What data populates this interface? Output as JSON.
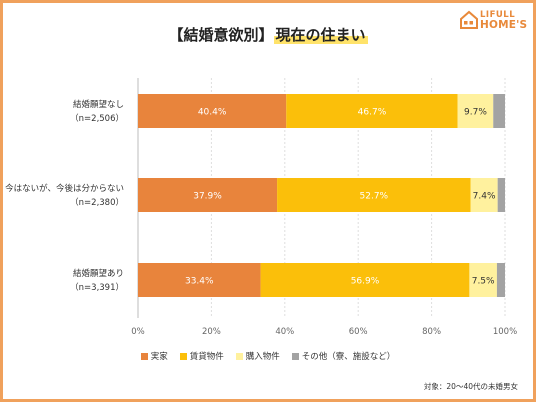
{
  "brand": {
    "name_top": "LIFULL",
    "name_bottom": "HOME'S",
    "color": "#e8893a"
  },
  "title": {
    "prefix": "【結婚意欲別】",
    "highlight": "現在の住まい",
    "highlight_color": "#ffe36a"
  },
  "chart_data": {
    "type": "bar",
    "orientation": "horizontal",
    "stacked": true,
    "categories": [
      {
        "label": "結婚願望なし",
        "n": "（n=2,506）"
      },
      {
        "label": "今はないが、今後は分からない",
        "n": "（n=2,380）"
      },
      {
        "label": "結婚願望あり",
        "n": "（n=3,391）"
      }
    ],
    "series": [
      {
        "name": "実家",
        "color": "#e8843c",
        "label_color": "#ffffff",
        "values": [
          40.4,
          37.9,
          33.4
        ],
        "labels": [
          "40.4%",
          "37.9%",
          "33.4%"
        ]
      },
      {
        "name": "賃貸物件",
        "color": "#fbbf0a",
        "label_color": "#ffffff",
        "values": [
          46.7,
          52.7,
          56.9
        ],
        "labels": [
          "46.7%",
          "52.7%",
          "56.9%"
        ]
      },
      {
        "name": "購入物件",
        "color": "#fff19e",
        "label_color": "#333333",
        "values": [
          9.7,
          7.4,
          7.5
        ],
        "labels": [
          "9.7%",
          "7.4%",
          "7.5%"
        ]
      },
      {
        "name": "その他（寮、施設など）",
        "color": "#a3a3a3",
        "label_color": "#333333",
        "values": [
          3.2,
          2.0,
          2.2
        ],
        "labels": [
          "",
          "",
          ""
        ]
      }
    ],
    "x_ticks": [
      "0%",
      "20%",
      "40%",
      "60%",
      "80%",
      "100%"
    ],
    "xlim": [
      0,
      100
    ],
    "grid": true,
    "legend_position": "bottom"
  },
  "footnote": "対象：20～40代の未婚男女"
}
